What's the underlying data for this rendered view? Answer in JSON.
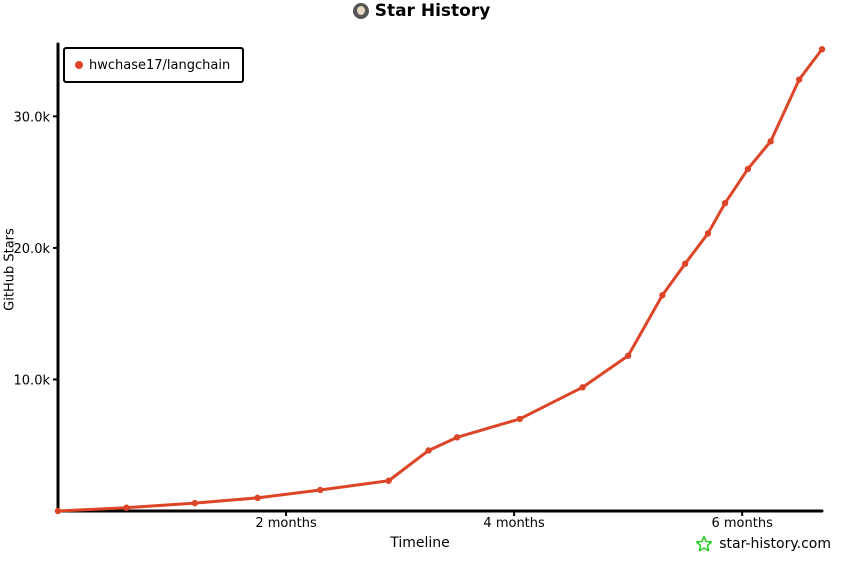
{
  "header": {
    "title": "Star History",
    "avatar_icon": "user-avatar"
  },
  "legend": {
    "label": "hwchase17/langchain",
    "color": "#dd4528"
  },
  "branding": {
    "text": "star-history.com",
    "icon": "star-outline-icon",
    "icon_color": "#22cc22"
  },
  "chart_data": {
    "type": "line",
    "title": "Star History",
    "xlabel": "Timeline",
    "ylabel": "GitHub Stars",
    "x_unit": "months",
    "x_ticks": [
      {
        "value": 2,
        "label": "2 months"
      },
      {
        "value": 4,
        "label": "4 months"
      },
      {
        "value": 6,
        "label": "6 months"
      }
    ],
    "y_ticks": [
      {
        "value": 10000,
        "label": "10.0k"
      },
      {
        "value": 20000,
        "label": "20.0k"
      },
      {
        "value": 30000,
        "label": "30.0k"
      }
    ],
    "xlim": [
      0,
      6.7
    ],
    "ylim": [
      0,
      35500
    ],
    "grid": false,
    "legend_position": "top-left",
    "series": [
      {
        "name": "hwchase17/langchain",
        "color": "#dd4528",
        "x": [
          0,
          0.6,
          1.2,
          1.75,
          2.3,
          2.9,
          3.25,
          3.5,
          4.05,
          4.6,
          5.0,
          5.3,
          5.5,
          5.7,
          5.85,
          6.05,
          6.25,
          6.5,
          6.7
        ],
        "y": [
          0,
          250,
          600,
          1000,
          1600,
          2300,
          4600,
          5600,
          7000,
          9400,
          11800,
          16400,
          18800,
          21100,
          23400,
          26000,
          28100,
          32800,
          35100
        ]
      }
    ]
  }
}
